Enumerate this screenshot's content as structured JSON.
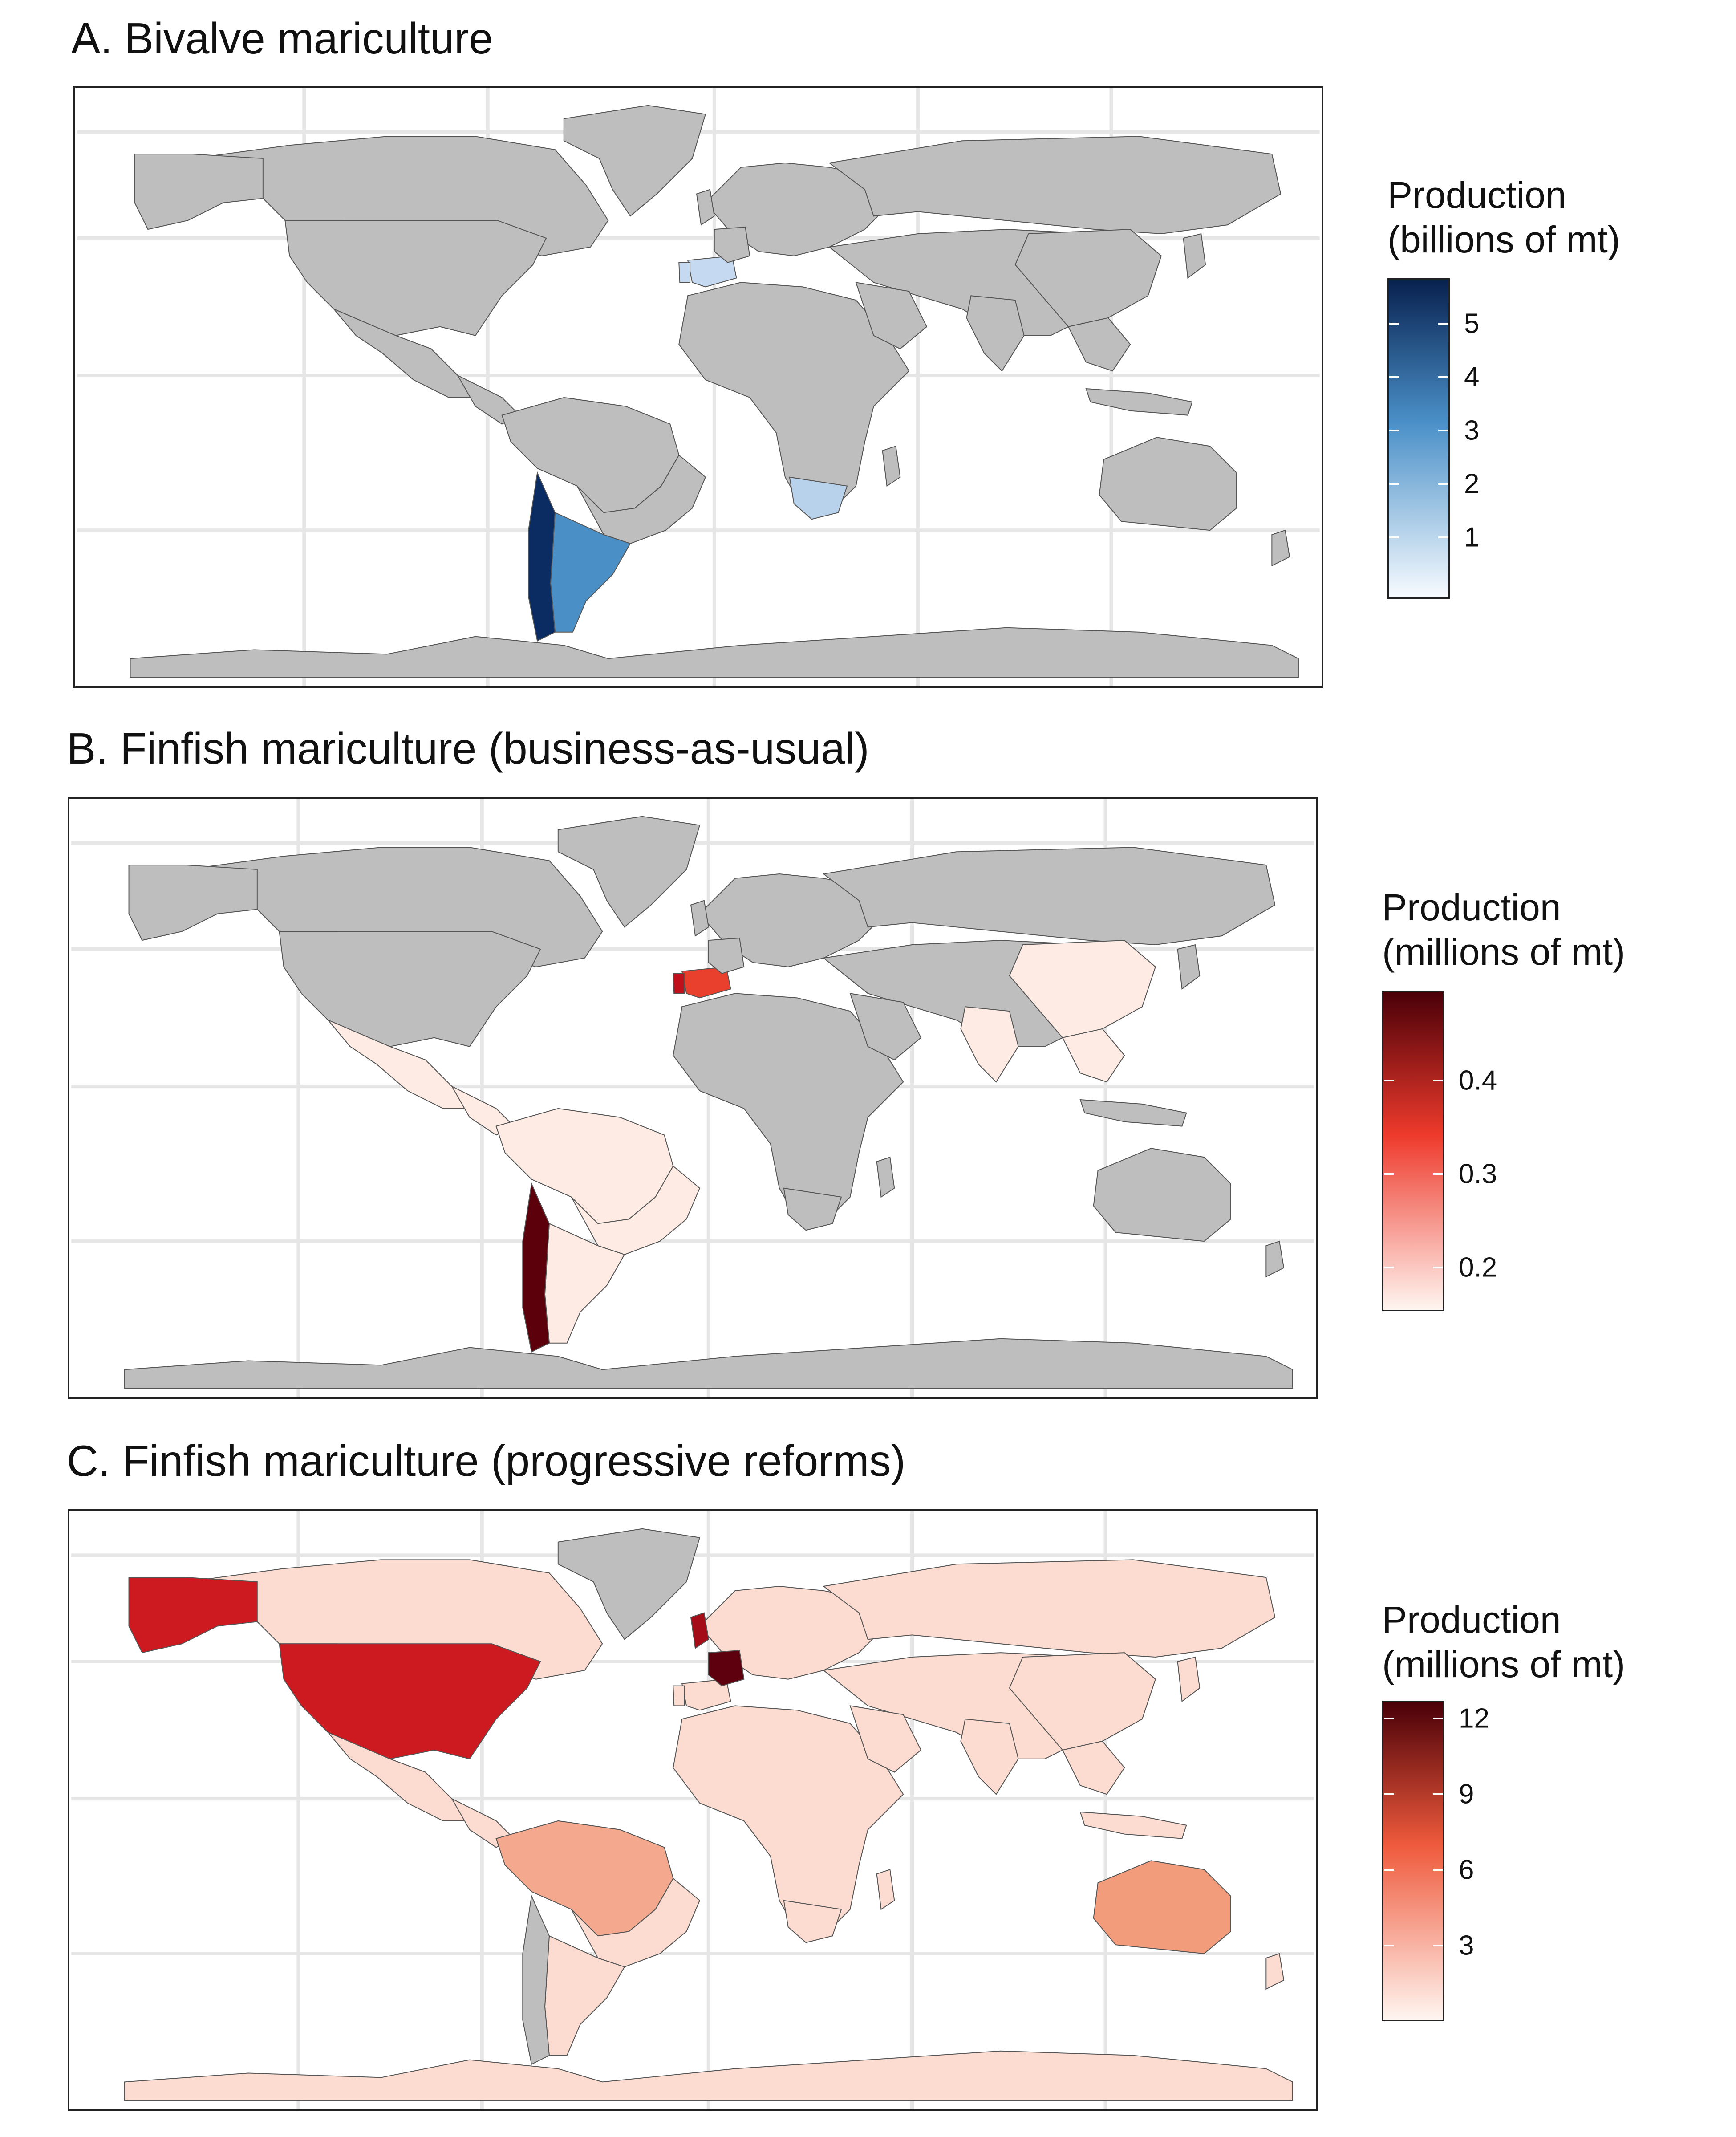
{
  "panels": [
    {
      "id": "a",
      "title": "A. Bivalve mariculture",
      "legend": {
        "title_line1": "Production",
        "title_line2": "(billions of mt)",
        "ticks": [
          "5",
          "4",
          "3",
          "2",
          "1"
        ],
        "colors": {
          "low": "#f7fbff",
          "mid": "#4a90c8",
          "high": "#08214f"
        }
      },
      "highlights": {
        "argentina": "#4a8fc6",
        "chile": "#0b2b63",
        "south_africa": "#b8d2ec",
        "spain": "#c5daf0",
        "morocco": "#e6f0fa"
      }
    },
    {
      "id": "b",
      "title": "B. Finfish mariculture (business-as-usual)",
      "legend": {
        "title_line1": "Production",
        "title_line2": "(millions of mt)",
        "ticks": [
          "0.4",
          "0.3",
          "0.2"
        ],
        "colors": {
          "low": "#fff5f0",
          "mid": "#ee3a2c",
          "high": "#4a0008"
        }
      },
      "highlights": {
        "chile": "#5c000c",
        "spain": "#e8402d",
        "portugal": "#c0101c",
        "light": "#fdebe4"
      }
    },
    {
      "id": "c",
      "title": "C. Finfish mariculture (progressive reforms)",
      "legend": {
        "title_line1": "Production",
        "title_line2": "(millions of mt)",
        "ticks": [
          "12",
          "9",
          "6",
          "3"
        ],
        "colors": {
          "low": "#fff5f0",
          "mid": "#ef5a3c",
          "high": "#4a0008"
        }
      },
      "highlights": {
        "usa": "#cd1a20",
        "alaska": "#cd1a20",
        "uk": "#a40d17",
        "france": "#5e000e",
        "australia": "#f39c7c",
        "colombia": "#f4a98e",
        "light": "#fcdcd0"
      }
    }
  ],
  "colors": {
    "land_default": "#bebebe",
    "grid": "#e6e6e6",
    "border": "#555555"
  }
}
